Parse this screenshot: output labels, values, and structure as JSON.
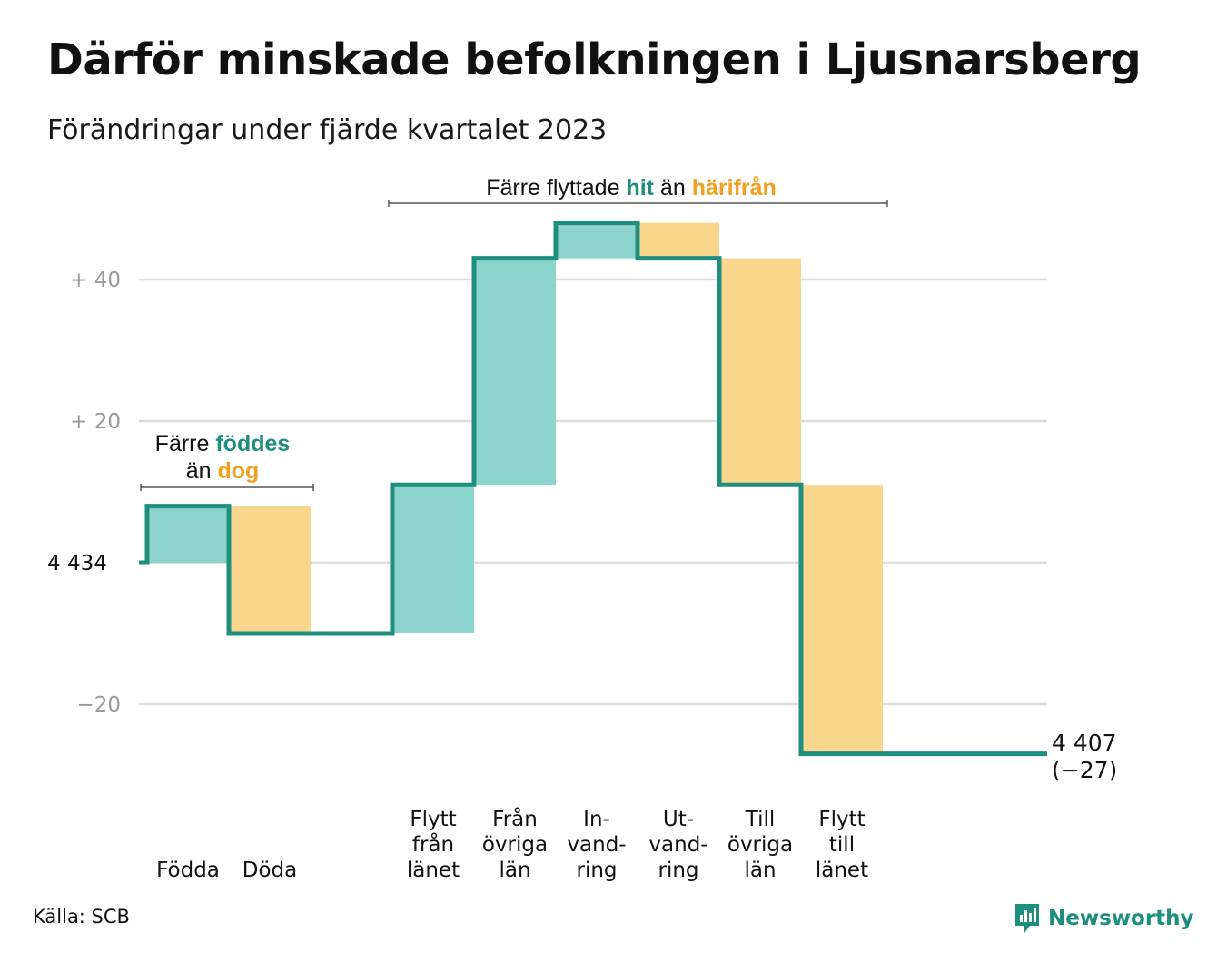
{
  "title": "Därför minskade befolkningen i Ljusnarsberg",
  "subtitle": "Förändringar under fjärde kvartalet 2023",
  "source": "Källa: SCB",
  "brand": "Newsworthy",
  "colors": {
    "in": "#8dd5cc",
    "out": "#f9d68e",
    "line": "#1e8e7e",
    "outText": "#f0a020",
    "grid": "#dddddd",
    "tick": "#999999"
  },
  "chart_data": {
    "type": "waterfall",
    "start": 4434,
    "end": 4407,
    "ylim": [
      -25,
      45
    ],
    "ticks": [
      {
        "value": 40,
        "label": "+  40"
      },
      {
        "value": 20,
        "label": "+  20"
      },
      {
        "value": 0,
        "label": "4  434"
      },
      {
        "value": -20,
        "label": "−20"
      }
    ],
    "steps": [
      {
        "category": [
          "Födda"
        ],
        "value": 8,
        "kind": "in"
      },
      {
        "category": [
          "Döda"
        ],
        "value": -18,
        "kind": "out"
      },
      {
        "category": [
          ""
        ],
        "value": 0,
        "kind": "gap"
      },
      {
        "category": [
          "Flytt",
          "från",
          "länet"
        ],
        "value": 21,
        "kind": "in"
      },
      {
        "category": [
          "Från",
          "övriga",
          "län"
        ],
        "value": 32,
        "kind": "in"
      },
      {
        "category": [
          "In-",
          "vand-",
          "ring"
        ],
        "value": 5,
        "kind": "in"
      },
      {
        "category": [
          "Ut-",
          "vand-",
          "ring"
        ],
        "value": -5,
        "kind": "out"
      },
      {
        "category": [
          "Till",
          "övriga",
          "län"
        ],
        "value": -32,
        "kind": "out"
      },
      {
        "category": [
          "Flytt",
          "till",
          "länet"
        ],
        "value": -38,
        "kind": "out"
      }
    ],
    "end_label": [
      "4 407",
      "(−27)"
    ],
    "annotations": [
      {
        "parts": [
          {
            "text": "Färre ",
            "style": "plain"
          },
          {
            "text": "föddes",
            "style": "in"
          }
        ],
        "line2": [
          {
            "text": "än ",
            "style": "plain"
          },
          {
            "text": "dog",
            "style": "out"
          }
        ]
      },
      {
        "parts": [
          {
            "text": "Färre flyttade ",
            "style": "plain"
          },
          {
            "text": "hit",
            "style": "in"
          },
          {
            "text": " än ",
            "style": "plain"
          },
          {
            "text": "härifrån",
            "style": "out"
          }
        ]
      }
    ]
  }
}
